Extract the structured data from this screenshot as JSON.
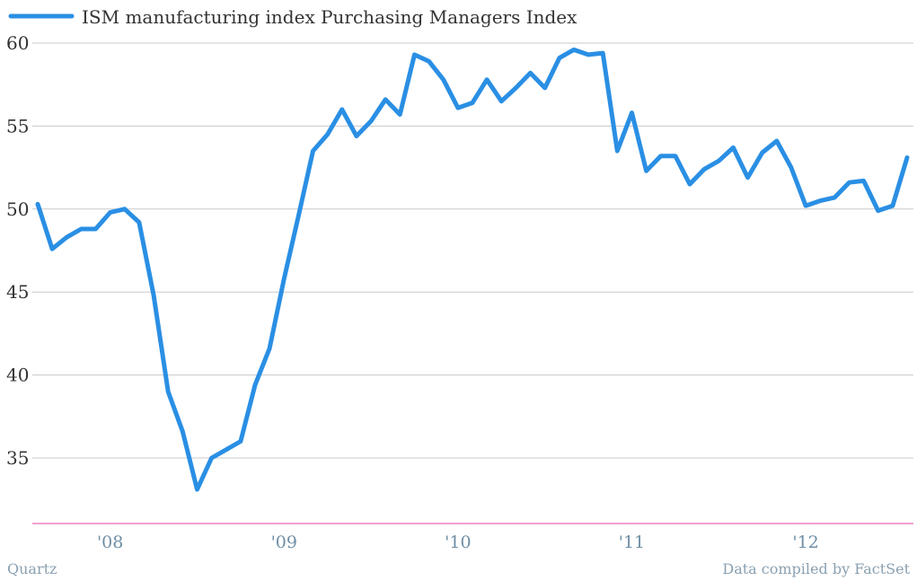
{
  "chart_data": {
    "type": "line",
    "title": "",
    "xlabel": "",
    "ylabel": "",
    "legend": {
      "placement": "top-left",
      "entries": [
        "ISM manufacturing index Purchasing Managers Index"
      ]
    },
    "grid": true,
    "ylim": [
      31,
      61
    ],
    "yticks": [
      35,
      40,
      45,
      50,
      55,
      60
    ],
    "xlim": [
      "2007-08",
      "2012-08"
    ],
    "xticks": [
      {
        "date": "2008-01",
        "label": "'08"
      },
      {
        "date": "2009-01",
        "label": "'09"
      },
      {
        "date": "2010-01",
        "label": "'10"
      },
      {
        "date": "2011-01",
        "label": "'11"
      },
      {
        "date": "2012-01",
        "label": "'12"
      }
    ],
    "series": [
      {
        "name": "ISM manufacturing index Purchasing Managers Index",
        "color": "#2a8fe4",
        "points": [
          [
            "2007-08",
            50.3
          ],
          [
            "2007-09",
            47.6
          ],
          [
            "2007-10",
            48.3
          ],
          [
            "2007-11",
            48.8
          ],
          [
            "2007-12",
            48.8
          ],
          [
            "2008-01",
            49.8
          ],
          [
            "2008-02",
            50.0
          ],
          [
            "2008-03",
            49.2
          ],
          [
            "2008-04",
            44.8
          ],
          [
            "2008-05",
            39.0
          ],
          [
            "2008-06",
            36.6
          ],
          [
            "2008-07",
            33.1
          ],
          [
            "2008-08",
            35.0
          ],
          [
            "2008-09",
            35.5
          ],
          [
            "2008-10",
            36.0
          ],
          [
            "2008-11",
            39.4
          ],
          [
            "2008-12",
            41.6
          ],
          [
            "2009-01",
            45.8
          ],
          [
            "2009-02",
            49.6
          ],
          [
            "2009-03",
            53.5
          ],
          [
            "2009-04",
            54.5
          ],
          [
            "2009-05",
            56.0
          ],
          [
            "2009-06",
            54.4
          ],
          [
            "2009-07",
            55.3
          ],
          [
            "2009-08",
            56.6
          ],
          [
            "2009-09",
            55.7
          ],
          [
            "2009-10",
            59.3
          ],
          [
            "2009-11",
            58.9
          ],
          [
            "2009-12",
            57.8
          ],
          [
            "2010-01",
            56.1
          ],
          [
            "2010-02",
            56.4
          ],
          [
            "2010-03",
            57.8
          ],
          [
            "2010-04",
            56.5
          ],
          [
            "2010-05",
            57.3
          ],
          [
            "2010-06",
            58.2
          ],
          [
            "2010-07",
            57.3
          ],
          [
            "2010-08",
            59.1
          ],
          [
            "2010-09",
            59.6
          ],
          [
            "2010-10",
            59.3
          ],
          [
            "2010-11",
            59.4
          ],
          [
            "2010-12",
            53.5
          ],
          [
            "2011-01",
            55.8
          ],
          [
            "2011-02",
            52.3
          ],
          [
            "2011-03",
            53.2
          ],
          [
            "2011-04",
            53.2
          ],
          [
            "2011-05",
            51.5
          ],
          [
            "2011-06",
            52.4
          ],
          [
            "2011-07",
            52.9
          ],
          [
            "2011-08",
            53.7
          ],
          [
            "2011-09",
            51.9
          ],
          [
            "2011-10",
            53.4
          ],
          [
            "2011-11",
            54.1
          ],
          [
            "2011-12",
            52.5
          ],
          [
            "2012-01",
            50.2
          ],
          [
            "2012-02",
            50.5
          ],
          [
            "2012-03",
            50.7
          ],
          [
            "2012-04",
            51.6
          ],
          [
            "2012-05",
            51.7
          ],
          [
            "2012-06",
            49.9
          ],
          [
            "2012-07",
            50.2
          ],
          [
            "2012-08",
            53.1
          ]
        ]
      }
    ]
  },
  "footer": {
    "source_left": "Quartz",
    "source_right": "Data compiled by FactSet"
  },
  "colors": {
    "line": "#2a8fe4",
    "baseline": "#e040a0",
    "grid": "#c8c8c8",
    "xtick": "#6f8fa6"
  }
}
